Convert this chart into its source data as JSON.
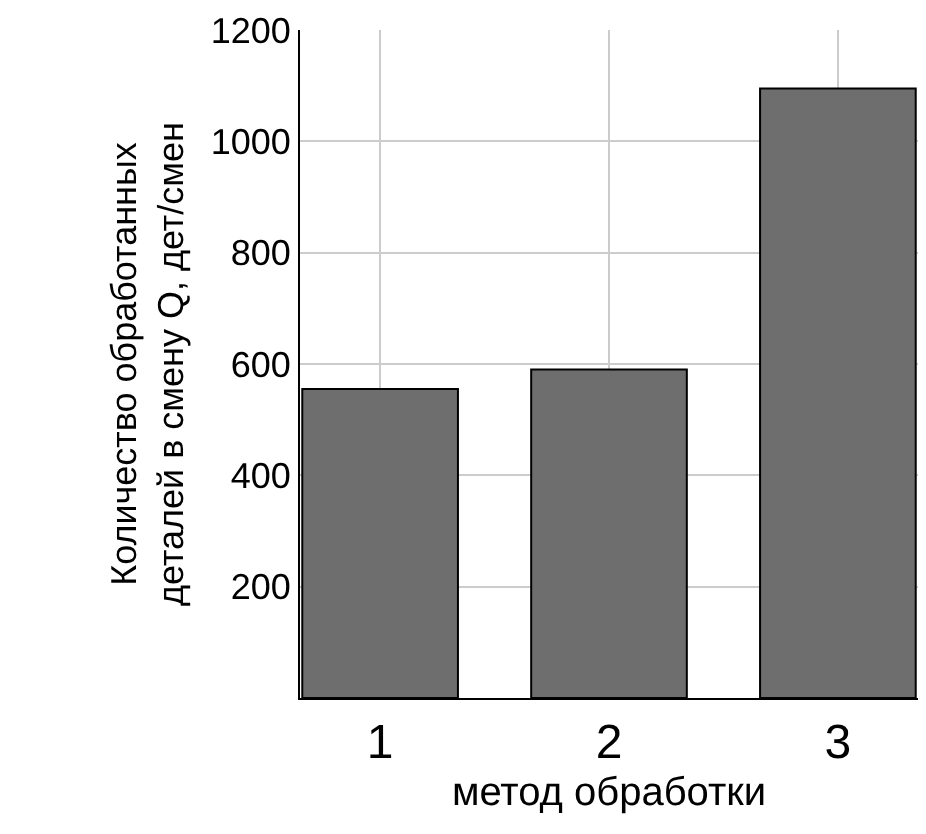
{
  "chart_data": {
    "type": "bar",
    "xlabel": "метод обработки",
    "ylabel": "Количество обработанных\nдеталей в смену Q, дет/смен",
    "categories": [
      "1",
      "2",
      "3"
    ],
    "values": [
      555,
      590,
      1095
    ],
    "color": "#6e6e6e",
    "ylim": [
      0,
      1200
    ],
    "yticks": [
      200,
      400,
      600,
      800,
      1000,
      1200
    ],
    "grid": true,
    "legend": false
  }
}
